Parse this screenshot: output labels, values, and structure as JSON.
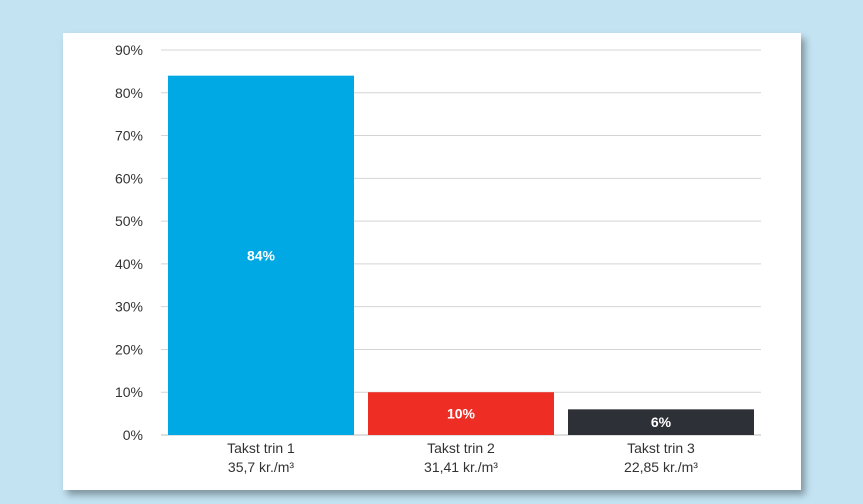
{
  "chart_data": {
    "type": "bar",
    "categories": [
      "Takst trin 1",
      "Takst trin 2",
      "Takst trin 3"
    ],
    "sublabels": [
      "35,7 kr./m³",
      "31,41 kr./m³",
      "22,85 kr./m³"
    ],
    "values": [
      84,
      10,
      6
    ],
    "value_labels": [
      "84%",
      "10%",
      "6%"
    ],
    "colors": [
      "#00a8e4",
      "#ee2d24",
      "#2e3038"
    ],
    "ylim": [
      0,
      90
    ],
    "yticks": [
      0,
      10,
      20,
      30,
      40,
      50,
      60,
      70,
      80,
      90
    ],
    "ytick_labels": [
      "0%",
      "10%",
      "20%",
      "30%",
      "40%",
      "50%",
      "60%",
      "70%",
      "80%",
      "90%"
    ],
    "grid": true,
    "title": "",
    "xlabel": "",
    "ylabel": ""
  }
}
